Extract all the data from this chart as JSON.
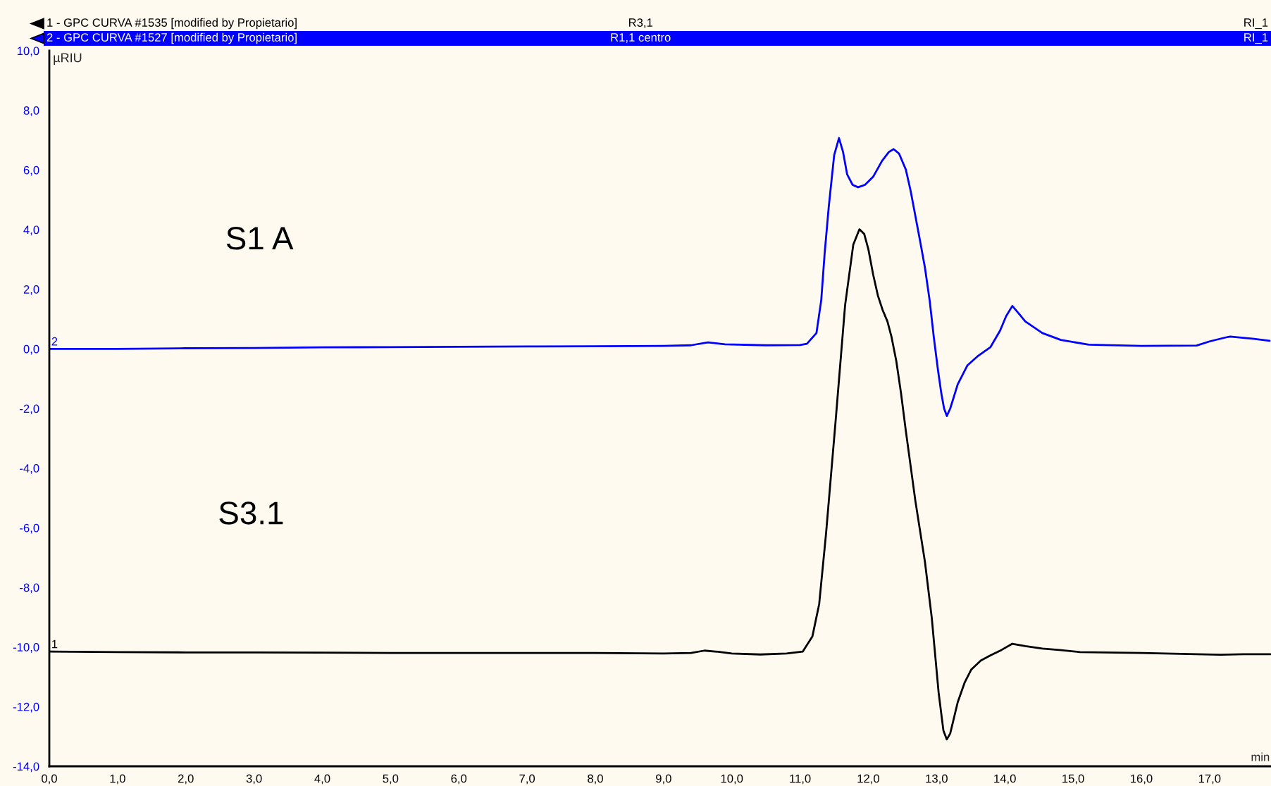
{
  "chart_data": {
    "type": "line",
    "xlabel": "min",
    "ylabel": "µRIU",
    "xlim": [
      0,
      17.9
    ],
    "ylim": [
      -14,
      10
    ],
    "xticks": [
      {
        "value": 0,
        "label": "0,0"
      },
      {
        "value": 1,
        "label": "1,0"
      },
      {
        "value": 2,
        "label": "2,0"
      },
      {
        "value": 3,
        "label": "3,0"
      },
      {
        "value": 4,
        "label": "4,0"
      },
      {
        "value": 5,
        "label": "5,0"
      },
      {
        "value": 6,
        "label": "6,0"
      },
      {
        "value": 7,
        "label": "7,0"
      },
      {
        "value": 8,
        "label": "8,0"
      },
      {
        "value": 9,
        "label": "9,0"
      },
      {
        "value": 10,
        "label": "10,0"
      },
      {
        "value": 11,
        "label": "11,0"
      },
      {
        "value": 12,
        "label": "12,0"
      },
      {
        "value": 13,
        "label": "13,0"
      },
      {
        "value": 14,
        "label": "14,0"
      },
      {
        "value": 15,
        "label": "15,0"
      },
      {
        "value": 16,
        "label": "16,0"
      },
      {
        "value": 17,
        "label": "17,0"
      }
    ],
    "yticks": [
      {
        "value": 10,
        "label": "10,0"
      },
      {
        "value": 8,
        "label": "8,0"
      },
      {
        "value": 6,
        "label": "6,0"
      },
      {
        "value": 4,
        "label": "4,0"
      },
      {
        "value": 2,
        "label": "2,0"
      },
      {
        "value": 0,
        "label": "0,0"
      },
      {
        "value": -2,
        "label": "-2,0"
      },
      {
        "value": -4,
        "label": "-4,0"
      },
      {
        "value": -6,
        "label": "-6,0"
      },
      {
        "value": -8,
        "label": "-8,0"
      },
      {
        "value": -10,
        "label": "-10,0"
      },
      {
        "value": -12,
        "label": "-12,0"
      },
      {
        "value": -14,
        "label": "-14,0"
      }
    ],
    "legend": "top",
    "series": [
      {
        "name": "1 - GPC CURVA #1535 [modified by Propietario]",
        "color": "#000000",
        "x": [
          0,
          1,
          2,
          3,
          4,
          5,
          6,
          7,
          8,
          9,
          9.4,
          9.6,
          9.8,
          10,
          10.42,
          10.8,
          11.04,
          11.18,
          11.28,
          11.38,
          11.52,
          11.66,
          11.78,
          11.87,
          11.94,
          12,
          12.07,
          12.14,
          12.21,
          12.28,
          12.34,
          12.41,
          12.48,
          12.55,
          12.69,
          12.83,
          12.93,
          13.03,
          13.1,
          13.15,
          13.2,
          13.31,
          13.41,
          13.51,
          13.65,
          13.79,
          13.95,
          14.11,
          14.3,
          14.55,
          14.8,
          15.1,
          16,
          17.16,
          17.5,
          17.89
        ],
        "values": [
          -10.15,
          -10.17,
          -10.18,
          -10.18,
          -10.19,
          -10.2,
          -10.2,
          -10.2,
          -10.2,
          -10.22,
          -10.2,
          -10.12,
          -10.16,
          -10.22,
          -10.25,
          -10.22,
          -10.15,
          -9.65,
          -8.56,
          -6.21,
          -2.44,
          1.47,
          3.5,
          4.01,
          3.85,
          3.35,
          2.5,
          1.79,
          1.3,
          0.92,
          0.4,
          -0.41,
          -1.5,
          -2.76,
          -5.11,
          -7.15,
          -9.03,
          -11.53,
          -12.8,
          -13.1,
          -12.9,
          -11.85,
          -11.2,
          -10.75,
          -10.45,
          -10.28,
          -10.1,
          -9.89,
          -9.97,
          -10.05,
          -10.1,
          -10.17,
          -10.2,
          -10.26,
          -10.24,
          -10.24
        ]
      },
      {
        "name": "2 - GPC CURVA #1527 [modified by Propietario]",
        "color": "#0000ff",
        "x": [
          0,
          1,
          2,
          3,
          4,
          5,
          6,
          7,
          8,
          9,
          9.4,
          9.65,
          9.9,
          10.5,
          11,
          11.1,
          11.24,
          11.31,
          11.36,
          11.42,
          11.5,
          11.57,
          11.63,
          11.69,
          11.77,
          11.85,
          11.95,
          12.07,
          12.2,
          12.3,
          12.37,
          12.45,
          12.55,
          12.62,
          12.69,
          12.76,
          12.83,
          12.9,
          12.96,
          13.02,
          13.07,
          13.11,
          13.15,
          13.2,
          13.31,
          13.45,
          13.6,
          13.79,
          13.93,
          14.02,
          14.11,
          14.2,
          14.3,
          14.55,
          14.82,
          15.23,
          16,
          16.81,
          17,
          17.23,
          17.3,
          17.6,
          17.88
        ],
        "values": [
          0,
          0,
          0.02,
          0.03,
          0.05,
          0.06,
          0.07,
          0.08,
          0.09,
          0.1,
          0.12,
          0.22,
          0.15,
          0.12,
          0.13,
          0.17,
          0.53,
          1.63,
          3.2,
          4.76,
          6.5,
          7.07,
          6.6,
          5.85,
          5.5,
          5.42,
          5.5,
          5.77,
          6.3,
          6.6,
          6.7,
          6.55,
          6.01,
          5.3,
          4.45,
          3.6,
          2.72,
          1.6,
          0.38,
          -0.7,
          -1.5,
          -2,
          -2.25,
          -2,
          -1.19,
          -0.56,
          -0.25,
          0.06,
          0.61,
          1.1,
          1.44,
          1.2,
          0.92,
          0.53,
          0.3,
          0.14,
          0.1,
          0.11,
          0.25,
          0.38,
          0.41,
          0.35,
          0.27
        ]
      }
    ],
    "annotations": [
      {
        "text": "1",
        "x": 0,
        "y": -10.15
      },
      {
        "text": "2",
        "x": 0,
        "y": 0
      },
      "R3,1",
      "RI_1",
      "R1,1 centro",
      "RI_1",
      "S1 A",
      "S3.1"
    ]
  }
}
